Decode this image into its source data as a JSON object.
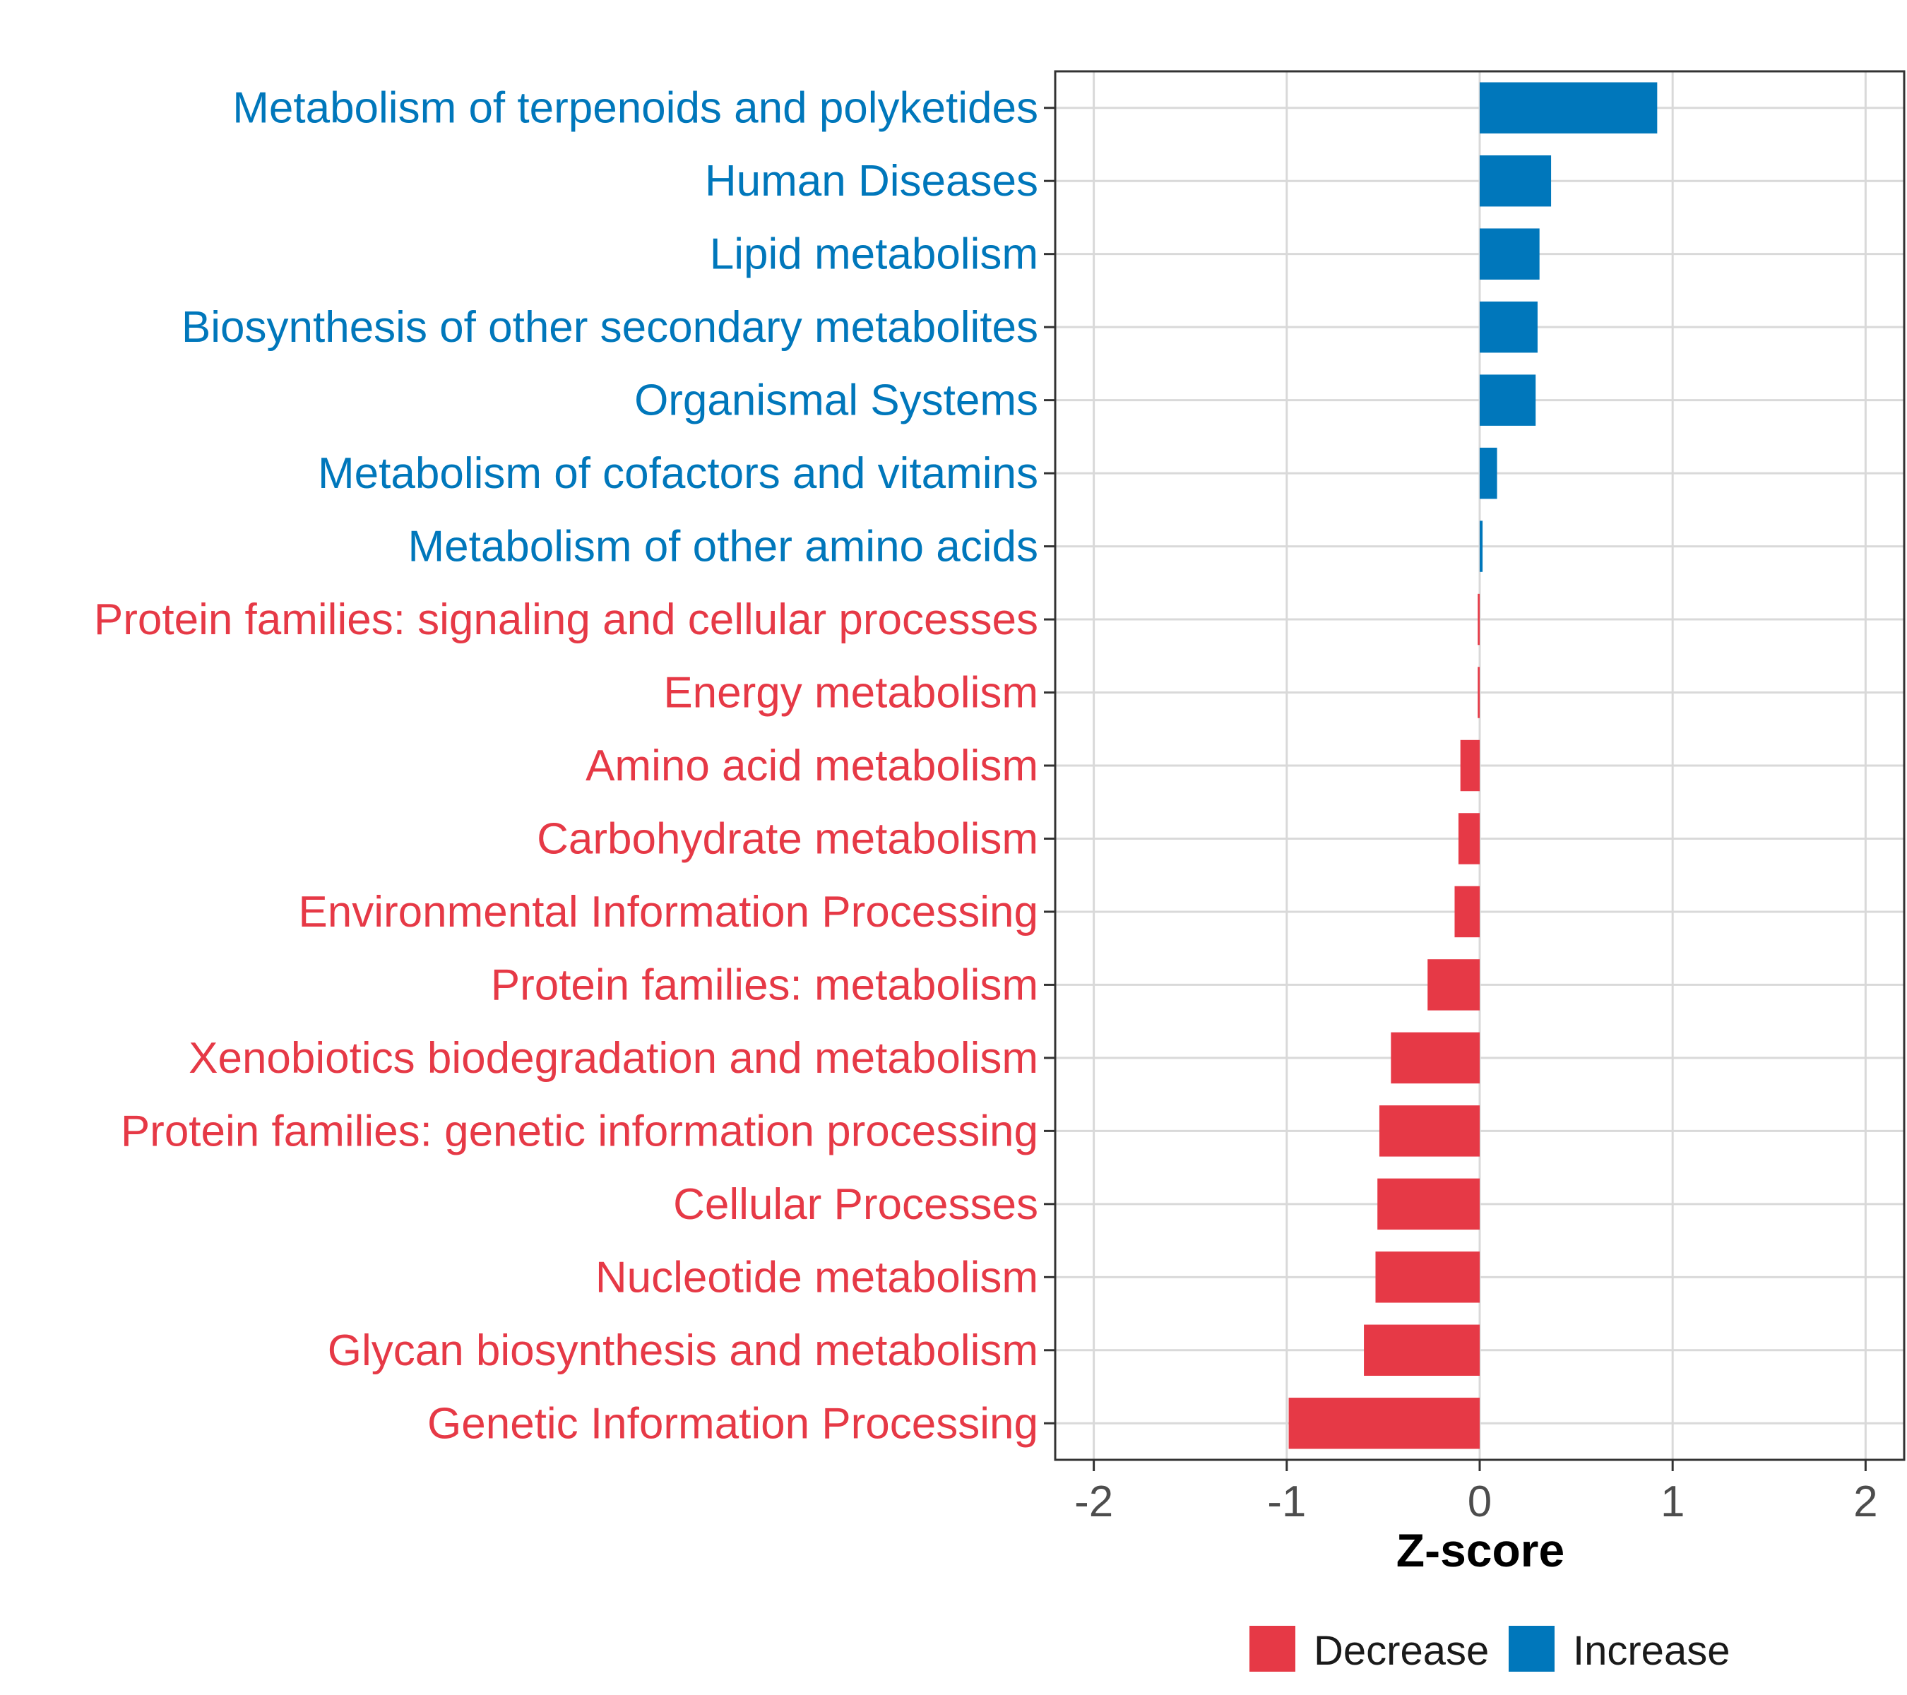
{
  "colors": {
    "increase": "#0077BB",
    "decrease": "#E63946",
    "grid": "#D9D9D9",
    "panel_border": "#333333",
    "tick_text": "#4D4D4D"
  },
  "chart_data": {
    "type": "bar",
    "orientation": "horizontal",
    "title": "",
    "xlabel": "Z-score",
    "ylabel": "",
    "xlim": [
      -2.2,
      2.2
    ],
    "xticks": [
      -2,
      -1,
      0,
      1,
      2
    ],
    "xtick_labels": [
      "-2",
      "-1",
      "0",
      "1",
      "2"
    ],
    "grid": true,
    "legend_position": "bottom",
    "legend": [
      {
        "label": "Decrease",
        "group": "decrease"
      },
      {
        "label": "Increase",
        "group": "increase"
      }
    ],
    "categories": [
      "Metabolism of terpenoids and polyketides",
      "Human Diseases",
      "Lipid metabolism",
      "Biosynthesis of other secondary metabolites",
      "Organismal Systems",
      "Metabolism of cofactors and vitamins",
      "Metabolism of other amino acids",
      "Protein families: signaling and cellular processes",
      "Energy metabolism",
      "Amino acid metabolism",
      "Carbohydrate metabolism",
      "Environmental Information Processing",
      "Protein families: metabolism",
      "Xenobiotics biodegradation and metabolism",
      "Protein families: genetic information processing",
      "Cellular Processes",
      "Nucleotide metabolism",
      "Glycan biosynthesis and metabolism",
      "Genetic Information Processing"
    ],
    "values": [
      0.92,
      0.37,
      0.31,
      0.3,
      0.29,
      0.09,
      0.015,
      -0.01,
      -0.01,
      -0.1,
      -0.11,
      -0.13,
      -0.27,
      -0.46,
      -0.52,
      -0.53,
      -0.54,
      -0.6,
      -0.99
    ],
    "groups": [
      "increase",
      "increase",
      "increase",
      "increase",
      "increase",
      "increase",
      "increase",
      "decrease",
      "decrease",
      "decrease",
      "decrease",
      "decrease",
      "decrease",
      "decrease",
      "decrease",
      "decrease",
      "decrease",
      "decrease",
      "decrease"
    ]
  }
}
